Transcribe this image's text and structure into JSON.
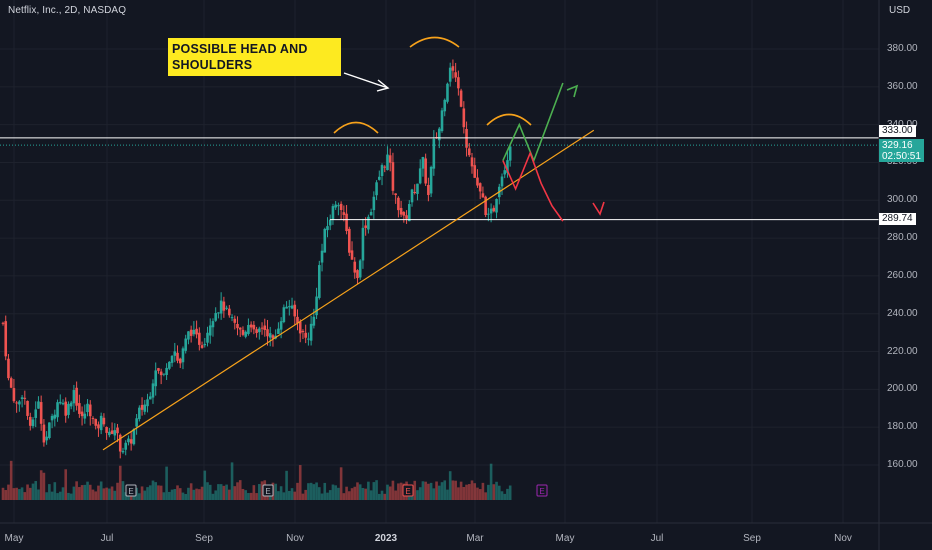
{
  "header": {
    "title": "Netflix, Inc., 2D, NASDAQ",
    "currency": "USD"
  },
  "annotation": {
    "text_line1": "POSSIBLE HEAD AND",
    "text_line2": "SHOULDERS"
  },
  "price_labels": {
    "resistance": "333.00",
    "current_price": "329.16",
    "countdown": "02:50:51",
    "support": "289.74"
  },
  "colors": {
    "background": "#131722",
    "up": "#26a69a",
    "down": "#ef5350",
    "trendline": "#f7a21b",
    "arc": "#f7a21b",
    "bull_arrow": "#4caf50",
    "bear_arrow": "#f23645",
    "callout": "#fdea20"
  },
  "chart_data": {
    "type": "candlestick",
    "title": "Netflix, Inc., 2D, NASDAQ",
    "ylabel": "USD",
    "ylim": [
      140,
      395
    ],
    "y_ticks": [
      "380.00",
      "360.00",
      "340.00",
      "320.00",
      "300.00",
      "280.00",
      "260.00",
      "240.00",
      "220.00",
      "200.00",
      "180.00",
      "160.00"
    ],
    "y_tick_values": [
      380,
      360,
      340,
      320,
      300,
      280,
      260,
      240,
      220,
      200,
      180,
      160
    ],
    "x_ticks": [
      "May",
      "Jul",
      "Sep",
      "Nov",
      "2023",
      "Mar",
      "May",
      "Jul",
      "Sep",
      "Nov"
    ],
    "horizontal_levels": [
      333.0,
      289.74
    ],
    "last_price": 329.16,
    "close_path_anchors": [
      [
        0,
        235
      ],
      [
        3,
        205
      ],
      [
        8,
        190
      ],
      [
        11,
        200
      ],
      [
        15,
        178
      ],
      [
        19,
        195
      ],
      [
        23,
        172
      ],
      [
        27,
        185
      ],
      [
        31,
        196
      ],
      [
        35,
        188
      ],
      [
        39,
        200
      ],
      [
        43,
        183
      ],
      [
        47,
        192
      ],
      [
        51,
        178
      ],
      [
        55,
        186
      ],
      [
        58,
        174
      ],
      [
        61,
        181
      ],
      [
        65,
        168
      ],
      [
        70,
        172
      ],
      [
        75,
        188
      ],
      [
        80,
        195
      ],
      [
        84,
        212
      ],
      [
        88,
        205
      ],
      [
        90,
        214
      ],
      [
        94,
        222
      ],
      [
        97,
        212
      ],
      [
        100,
        224
      ],
      [
        103,
        232
      ],
      [
        106,
        227
      ],
      [
        110,
        224
      ],
      [
        114,
        236
      ],
      [
        117,
        242
      ],
      [
        121,
        245
      ],
      [
        124,
        238
      ],
      [
        128,
        233
      ],
      [
        132,
        229
      ],
      [
        136,
        237
      ],
      [
        139,
        226
      ],
      [
        142,
        234
      ],
      [
        146,
        230
      ],
      [
        149,
        224
      ],
      [
        151,
        233
      ],
      [
        154,
        241
      ],
      [
        157,
        246
      ],
      [
        161,
        237
      ],
      [
        164,
        231
      ],
      [
        167,
        226
      ],
      [
        171,
        238
      ],
      [
        174,
        265
      ],
      [
        177,
        282
      ],
      [
        181,
        294
      ],
      [
        184,
        302
      ],
      [
        188,
        288
      ],
      [
        191,
        272
      ],
      [
        195,
        258
      ],
      [
        198,
        284
      ],
      [
        202,
        294
      ],
      [
        205,
        306
      ],
      [
        208,
        316
      ],
      [
        212,
        324
      ],
      [
        215,
        303
      ],
      [
        218,
        296
      ],
      [
        221,
        288
      ],
      [
        224,
        301
      ],
      [
        228,
        310
      ],
      [
        231,
        320
      ],
      [
        234,
        302
      ],
      [
        237,
        330
      ],
      [
        240,
        338
      ],
      [
        243,
        356
      ],
      [
        246,
        372
      ],
      [
        249,
        364
      ],
      [
        252,
        352
      ],
      [
        255,
        330
      ],
      [
        258,
        318
      ],
      [
        261,
        306
      ],
      [
        264,
        300
      ],
      [
        267,
        290
      ],
      [
        270,
        296
      ],
      [
        273,
        310
      ],
      [
        276,
        318
      ],
      [
        279,
        330
      ]
    ],
    "day_range": [
      0,
      280
    ],
    "projected_paths": {
      "bullish": [
        [
          275,
          321
        ],
        [
          284,
          340
        ],
        [
          292,
          321
        ],
        [
          308,
          362
        ]
      ],
      "bearish": [
        [
          275,
          321
        ],
        [
          282,
          306
        ],
        [
          290,
          325
        ],
        [
          296,
          309
        ],
        [
          302,
          297
        ],
        [
          308,
          289
        ]
      ]
    },
    "trendline": [
      [
        55,
        168
      ],
      [
        325,
        337
      ]
    ]
  }
}
